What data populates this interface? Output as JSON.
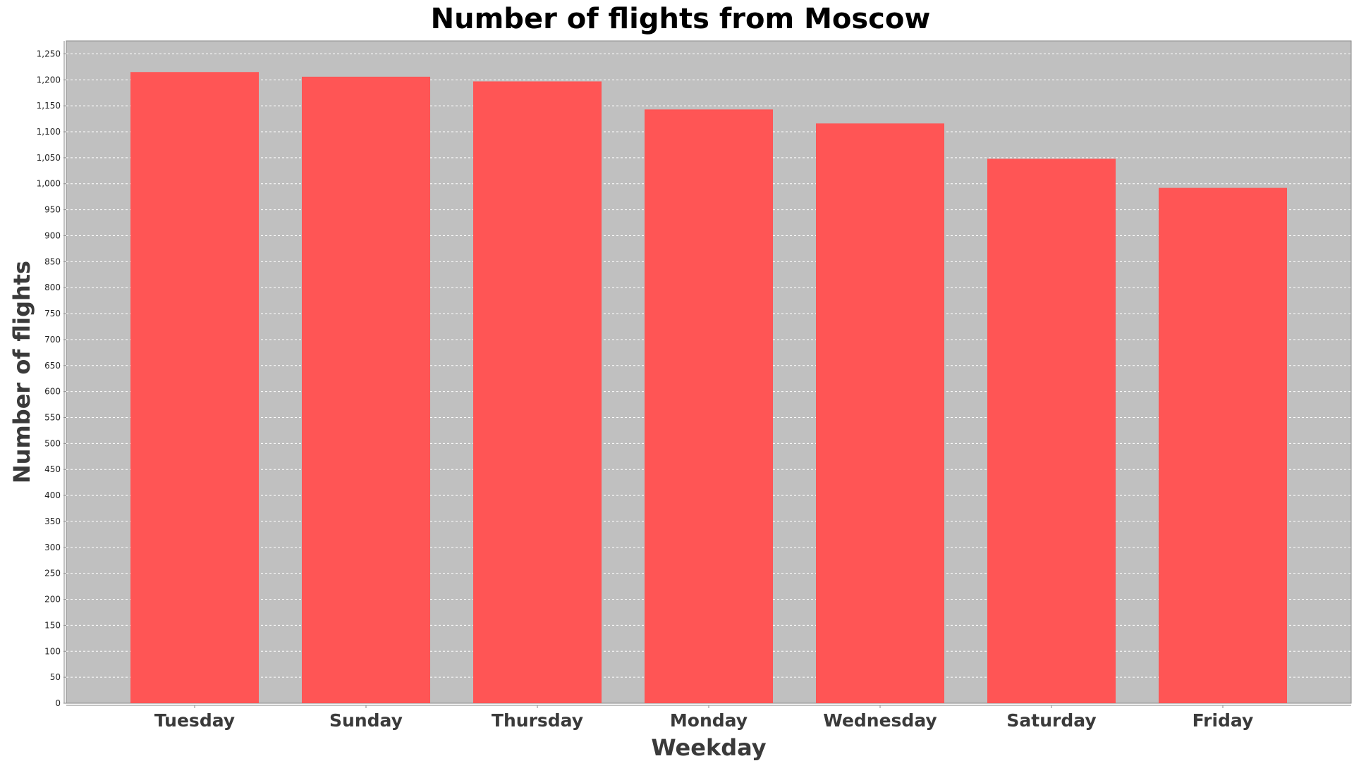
{
  "chart_data": {
    "type": "bar",
    "title": "Number of flights from Moscow",
    "xlabel": "Weekday",
    "ylabel": "Number of flights",
    "categories": [
      "Tuesday",
      "Sunday",
      "Thursday",
      "Monday",
      "Wednesday",
      "Saturday",
      "Friday"
    ],
    "values": [
      1215,
      1206,
      1197,
      1143,
      1116,
      1048,
      992
    ],
    "ylim": [
      0,
      1275
    ],
    "ytick_step": 50,
    "grid": true,
    "bar_color": "#ff5555",
    "plot_background": "#c0c0c0",
    "legend": "none"
  }
}
